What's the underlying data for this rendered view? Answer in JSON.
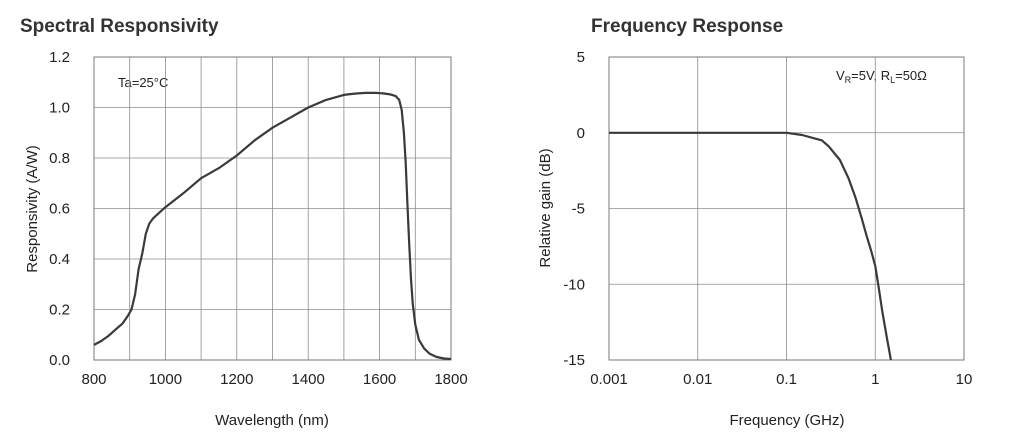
{
  "chart_data": [
    {
      "type": "line",
      "title": "Spectral Responsivity",
      "xlabel": "Wavelength (nm)",
      "ylabel": "Responsivity (A/W)",
      "xlim": [
        800,
        1800
      ],
      "ylim": [
        0,
        1.2
      ],
      "x_ticks": [
        800,
        1000,
        1200,
        1400,
        1600,
        1800
      ],
      "x_tick_labels": [
        "800",
        "1000",
        "1200",
        "1400",
        "1600",
        "1800"
      ],
      "y_ticks": [
        0,
        0.2,
        0.4,
        0.6,
        0.8,
        1.0,
        1.2
      ],
      "y_tick_labels": [
        "0.0",
        "0.2",
        "0.4",
        "0.6",
        "0.8",
        "1.0",
        "1.2"
      ],
      "x_minor_step": 100,
      "annotation": "Ta=25°C",
      "grid": true,
      "series": [
        {
          "name": "Responsivity",
          "x": [
            800,
            820,
            840,
            860,
            880,
            895,
            905,
            915,
            925,
            935,
            945,
            955,
            965,
            980,
            1000,
            1050,
            1100,
            1150,
            1200,
            1250,
            1300,
            1350,
            1400,
            1450,
            1500,
            1530,
            1560,
            1590,
            1610,
            1630,
            1645,
            1655,
            1662,
            1668,
            1673,
            1678,
            1683,
            1688,
            1693,
            1700,
            1710,
            1725,
            1740,
            1760,
            1780,
            1800
          ],
          "y": [
            0.06,
            0.075,
            0.095,
            0.12,
            0.145,
            0.175,
            0.2,
            0.26,
            0.36,
            0.42,
            0.5,
            0.54,
            0.56,
            0.58,
            0.605,
            0.66,
            0.72,
            0.76,
            0.81,
            0.87,
            0.92,
            0.96,
            1.0,
            1.03,
            1.05,
            1.055,
            1.058,
            1.058,
            1.056,
            1.052,
            1.045,
            1.03,
            0.99,
            0.9,
            0.78,
            0.62,
            0.46,
            0.32,
            0.22,
            0.14,
            0.08,
            0.045,
            0.025,
            0.012,
            0.006,
            0.004
          ]
        }
      ]
    },
    {
      "type": "line",
      "title": "Frequency Response",
      "xlabel": "Frequency (GHz)",
      "ylabel": "Relative gain (dB)",
      "x_scale": "log",
      "xlim": [
        0.001,
        10
      ],
      "ylim": [
        -15,
        5
      ],
      "x_ticks": [
        0.001,
        0.01,
        0.1,
        1,
        10
      ],
      "x_tick_labels": [
        "0.001",
        "0.01",
        "0.1",
        "1",
        "10"
      ],
      "y_ticks": [
        -15,
        -10,
        -5,
        0,
        5
      ],
      "y_tick_labels": [
        "-15",
        "-10",
        "-5",
        "0",
        "5"
      ],
      "annotation": {
        "V": "V",
        "R_sub": "R",
        "mid": "=5V, R",
        "L_sub": "L",
        "end": "=50Ω"
      },
      "grid": true,
      "series": [
        {
          "name": "Relative gain",
          "x": [
            0.001,
            0.01,
            0.1,
            0.15,
            0.2,
            0.25,
            0.3,
            0.4,
            0.5,
            0.6,
            0.7,
            0.8,
            0.9,
            1.0,
            1.1,
            1.2,
            1.35,
            1.5
          ],
          "y": [
            0,
            0,
            0,
            -0.15,
            -0.35,
            -0.5,
            -0.9,
            -1.8,
            -3.0,
            -4.3,
            -5.6,
            -6.8,
            -7.8,
            -8.8,
            -10.3,
            -11.8,
            -13.5,
            -15
          ]
        }
      ]
    }
  ]
}
